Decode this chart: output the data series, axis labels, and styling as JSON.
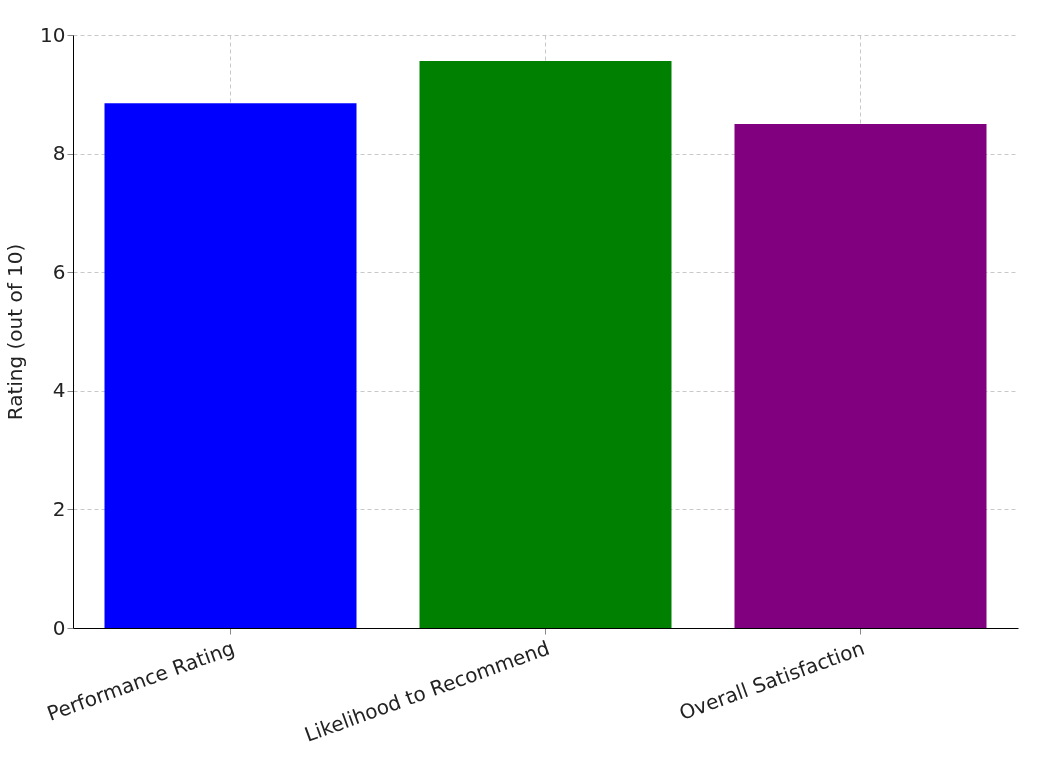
{
  "chart_data": {
    "type": "bar",
    "ylabel": "Rating (out of 10)",
    "categories": [
      "Performance Rating",
      "Likelihood to Recommend",
      "Overall Satisfaction"
    ],
    "values": [
      8.85,
      9.56,
      8.5
    ],
    "colors": [
      "#0000ff",
      "#008000",
      "#800080"
    ],
    "ylim": [
      0,
      10
    ],
    "yticks": [
      0,
      2,
      4,
      6,
      8,
      10
    ],
    "grid": true,
    "line_style": "dashed"
  }
}
